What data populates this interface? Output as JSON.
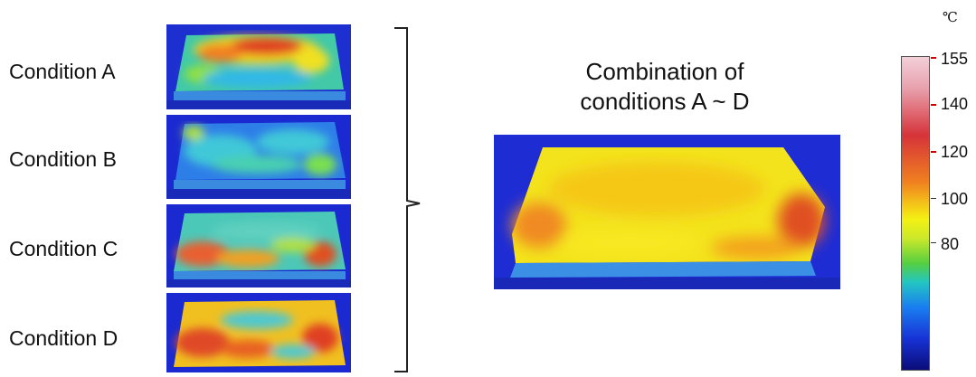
{
  "conditions": [
    {
      "label": "Condition A"
    },
    {
      "label": "Condition B"
    },
    {
      "label": "Condition C"
    },
    {
      "label": "Condition D"
    }
  ],
  "combination": {
    "title_line1": "Combination of",
    "title_line2": "conditions A ~ D"
  },
  "scale": {
    "unit": "℃",
    "ticks": [
      "155",
      "140",
      "120",
      "100",
      "80"
    ]
  }
}
